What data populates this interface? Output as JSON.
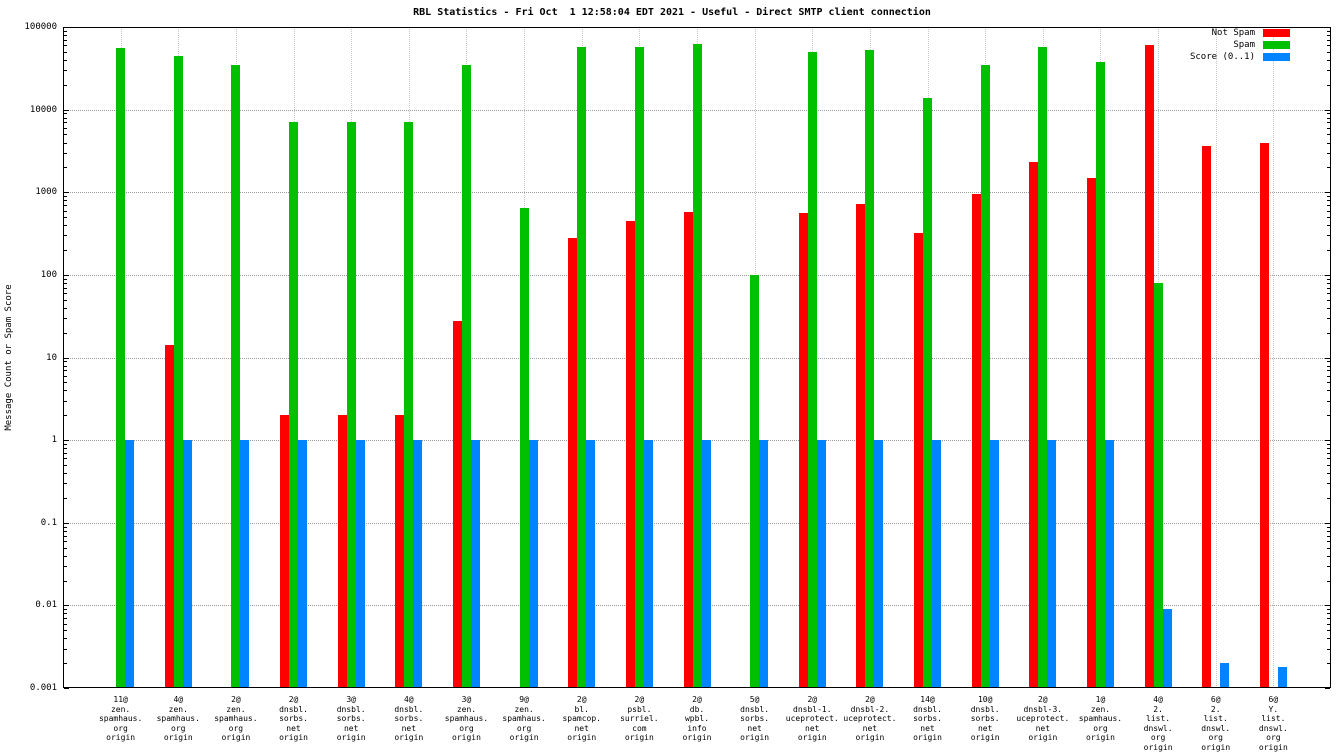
{
  "title": "RBL Statistics - Fri Oct  1 12:58:04 EDT 2021 - Useful - Direct SMTP client connection",
  "chart_data": {
    "type": "bar",
    "title": "RBL Statistics - Fri Oct  1 12:58:04 EDT 2021 - Useful - Direct SMTP client connection",
    "xlabel": "",
    "ylabel": "Message Count or Spam Score",
    "y_scale": "log",
    "ylim": [
      0.001,
      100000
    ],
    "y_ticks": [
      0.001,
      0.01,
      0.1,
      1,
      10,
      100,
      1000,
      10000,
      100000
    ],
    "grid": true,
    "legend_position": "top-right",
    "legend": [
      {
        "name": "Not Spam",
        "color": "#ff0000"
      },
      {
        "name": "Spam",
        "color": "#00c000"
      },
      {
        "name": "Score (0..1)",
        "color": "#0084ff"
      }
    ],
    "categories": [
      [
        "11@",
        "zen.",
        "spamhaus.",
        "org",
        "origin"
      ],
      [
        "4@",
        "zen.",
        "spamhaus.",
        "org",
        "origin"
      ],
      [
        "2@",
        "zen.",
        "spamhaus.",
        "org",
        "origin"
      ],
      [
        "2@",
        "dnsbl.",
        "sorbs.",
        "net",
        "origin"
      ],
      [
        "3@",
        "dnsbl.",
        "sorbs.",
        "net",
        "origin"
      ],
      [
        "4@",
        "dnsbl.",
        "sorbs.",
        "net",
        "origin"
      ],
      [
        "3@",
        "zen.",
        "spamhaus.",
        "org",
        "origin"
      ],
      [
        "9@",
        "zen.",
        "spamhaus.",
        "org",
        "origin"
      ],
      [
        "2@",
        "bl.",
        "spamcop.",
        "net",
        "origin"
      ],
      [
        "2@",
        "psbl.",
        "surriel.",
        "com",
        "origin"
      ],
      [
        "2@",
        "db.",
        "wpbl.",
        "info",
        "origin"
      ],
      [
        "5@",
        "dnsbl.",
        "sorbs.",
        "net",
        "origin"
      ],
      [
        "2@",
        "dnsbl-1.",
        "uceprotect.",
        "net",
        "origin"
      ],
      [
        "2@",
        "dnsbl-2.",
        "uceprotect.",
        "net",
        "origin"
      ],
      [
        "14@",
        "dnsbl.",
        "sorbs.",
        "net",
        "origin"
      ],
      [
        "10@",
        "dnsbl.",
        "sorbs.",
        "net",
        "origin"
      ],
      [
        "2@",
        "dnsbl-3.",
        "uceprotect.",
        "net",
        "origin"
      ],
      [
        "1@",
        "zen.",
        "spamhaus.",
        "org",
        "origin"
      ],
      [
        "4@",
        "2.",
        "list.",
        "dnswl.",
        "org",
        "origin"
      ],
      [
        "6@",
        "2.",
        "list.",
        "dnswl.",
        "org",
        "origin"
      ],
      [
        "6@",
        "Y.",
        "list.",
        "dnswl.",
        "org",
        "origin"
      ]
    ],
    "series": [
      {
        "name": "Not Spam",
        "color": "#ff0000",
        "values": [
          0,
          14,
          0,
          2,
          2,
          2,
          28,
          0,
          280,
          450,
          580,
          0,
          560,
          730,
          320,
          950,
          2300,
          1500,
          60000,
          3600,
          4000
        ]
      },
      {
        "name": "Spam",
        "color": "#00c000",
        "values": [
          55000,
          45000,
          35000,
          7000,
          7000,
          7000,
          35000,
          650,
          58000,
          57000,
          62000,
          100,
          50000,
          52000,
          14000,
          35000,
          58000,
          38000,
          80,
          0,
          0
        ]
      },
      {
        "name": "Score (0..1)",
        "color": "#0084ff",
        "values": [
          1,
          1,
          1,
          1,
          1,
          1,
          1,
          1,
          1,
          1,
          1,
          1,
          1,
          1,
          1,
          1,
          1,
          1,
          0.009,
          0.002,
          0.0018
        ]
      }
    ]
  }
}
